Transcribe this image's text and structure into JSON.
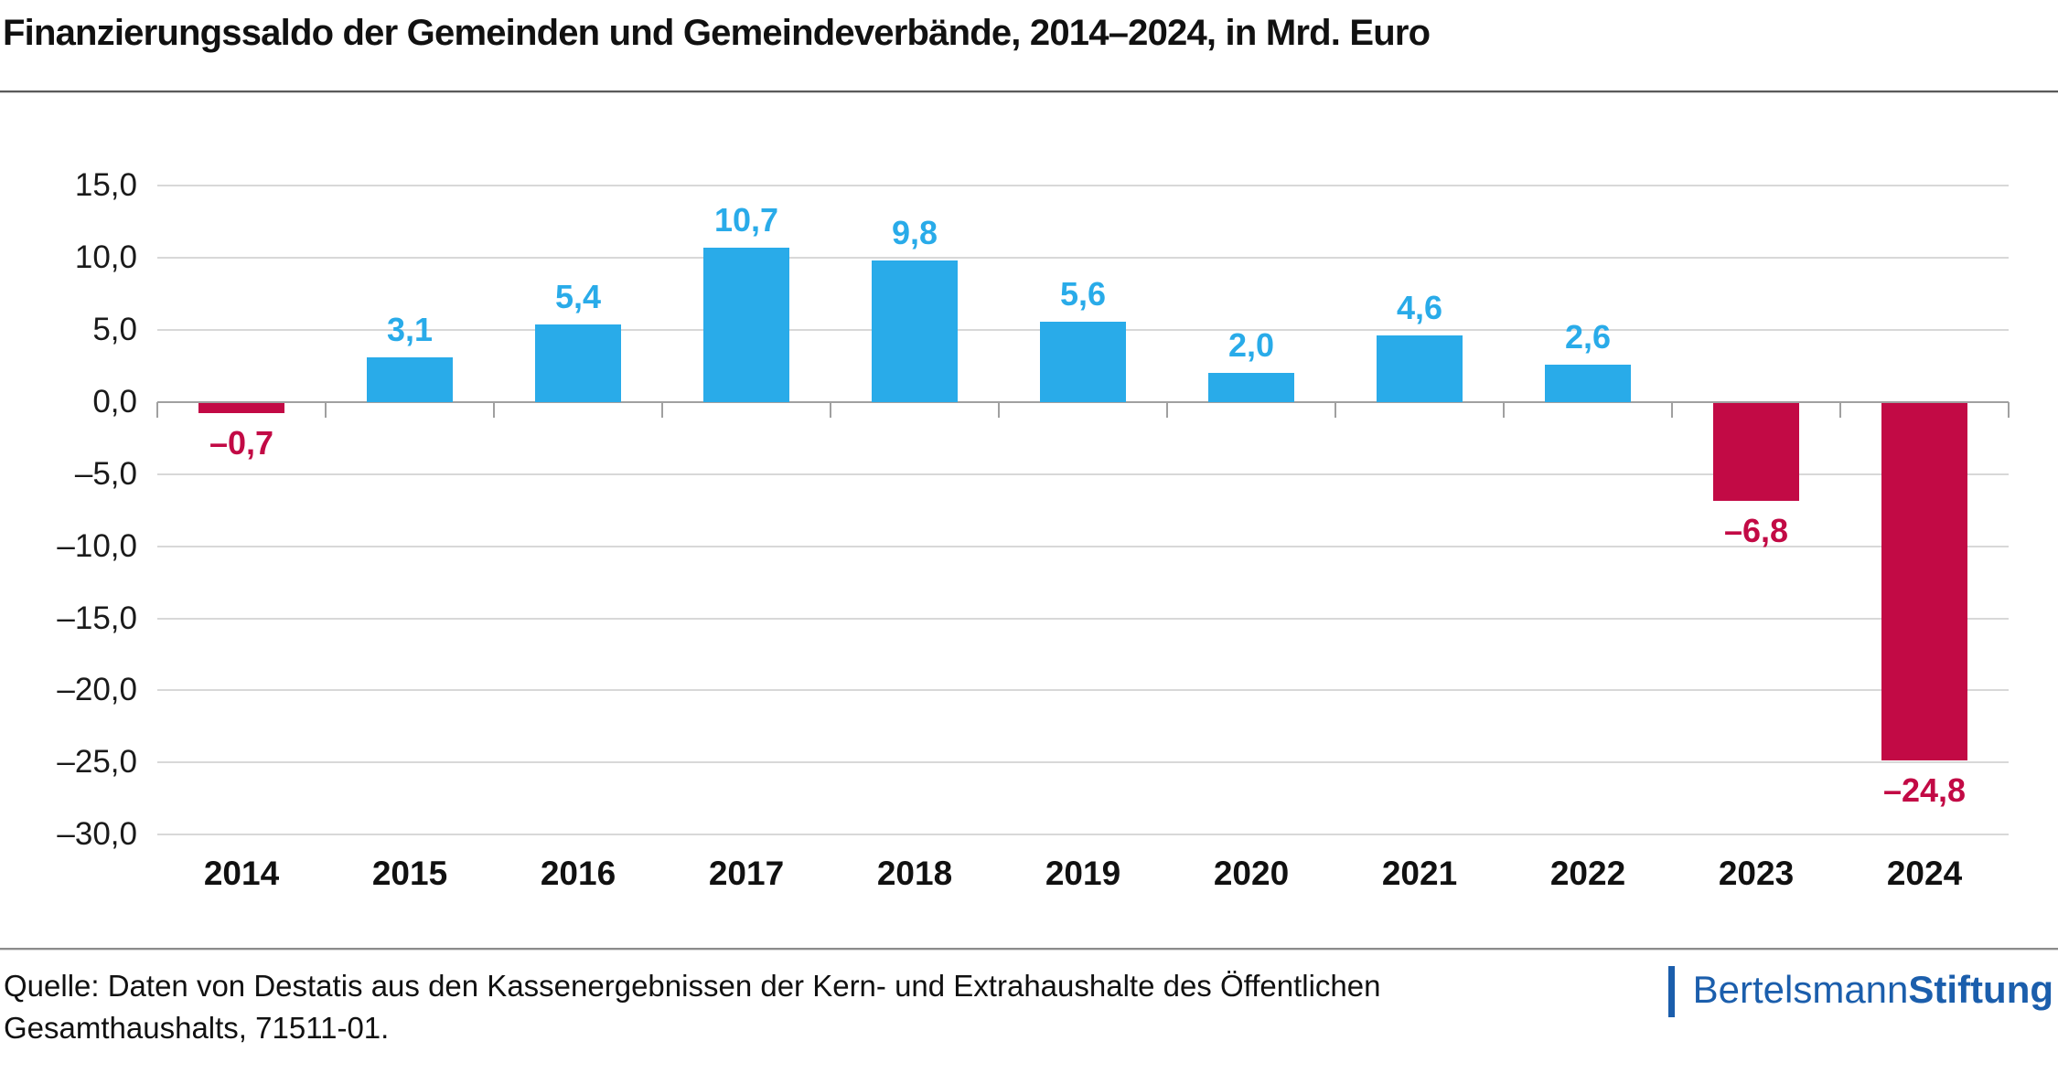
{
  "header": {
    "title": "Finanzierungssaldo der Gemeinden und Gemeindeverbände, 2014–2024, in Mrd. Euro"
  },
  "chart_data": {
    "type": "bar",
    "title": "Finanzierungssaldo der Gemeinden und Gemeindeverbände, 2014–2024, in Mrd. Euro",
    "categories": [
      "2014",
      "2015",
      "2016",
      "2017",
      "2018",
      "2019",
      "2020",
      "2021",
      "2022",
      "2023",
      "2024"
    ],
    "values": [
      -0.7,
      3.1,
      5.4,
      10.7,
      9.8,
      5.6,
      2.0,
      4.6,
      2.6,
      -6.8,
      -24.8
    ],
    "value_labels": [
      "–0,7",
      "3,1",
      "5,4",
      "10,7",
      "9,8",
      "5,6",
      "2,0",
      "4,6",
      "2,6",
      "–6,8",
      "–24,8"
    ],
    "ylabel": "",
    "xlabel": "",
    "ylim": [
      -30,
      15
    ],
    "ytick_step": 5,
    "ytick_labels": [
      "15,0",
      "10,0",
      "5,0",
      "0,0",
      "–5,0",
      "–10,0",
      "–15,0",
      "–20,0",
      "–25,0",
      "–30,0"
    ],
    "grid": "horizontal",
    "legend_position": "none",
    "colors": {
      "positive_bar": "#29abe9",
      "negative_bar": "#c20a45",
      "gridline": "#d8d8d8",
      "zero_axis": "#a0a0a0"
    }
  },
  "footer": {
    "source_line1": "Quelle: Daten von Destatis aus den Kassenergebnissen der Kern- und Extrahaushalte des Öffentlichen",
    "source_line2": "Gesamthaushalts, 71511-01.",
    "logo": {
      "name_regular": "Bertelsmann",
      "name_bold": "Stiftung",
      "color": "#1b5eac"
    }
  }
}
